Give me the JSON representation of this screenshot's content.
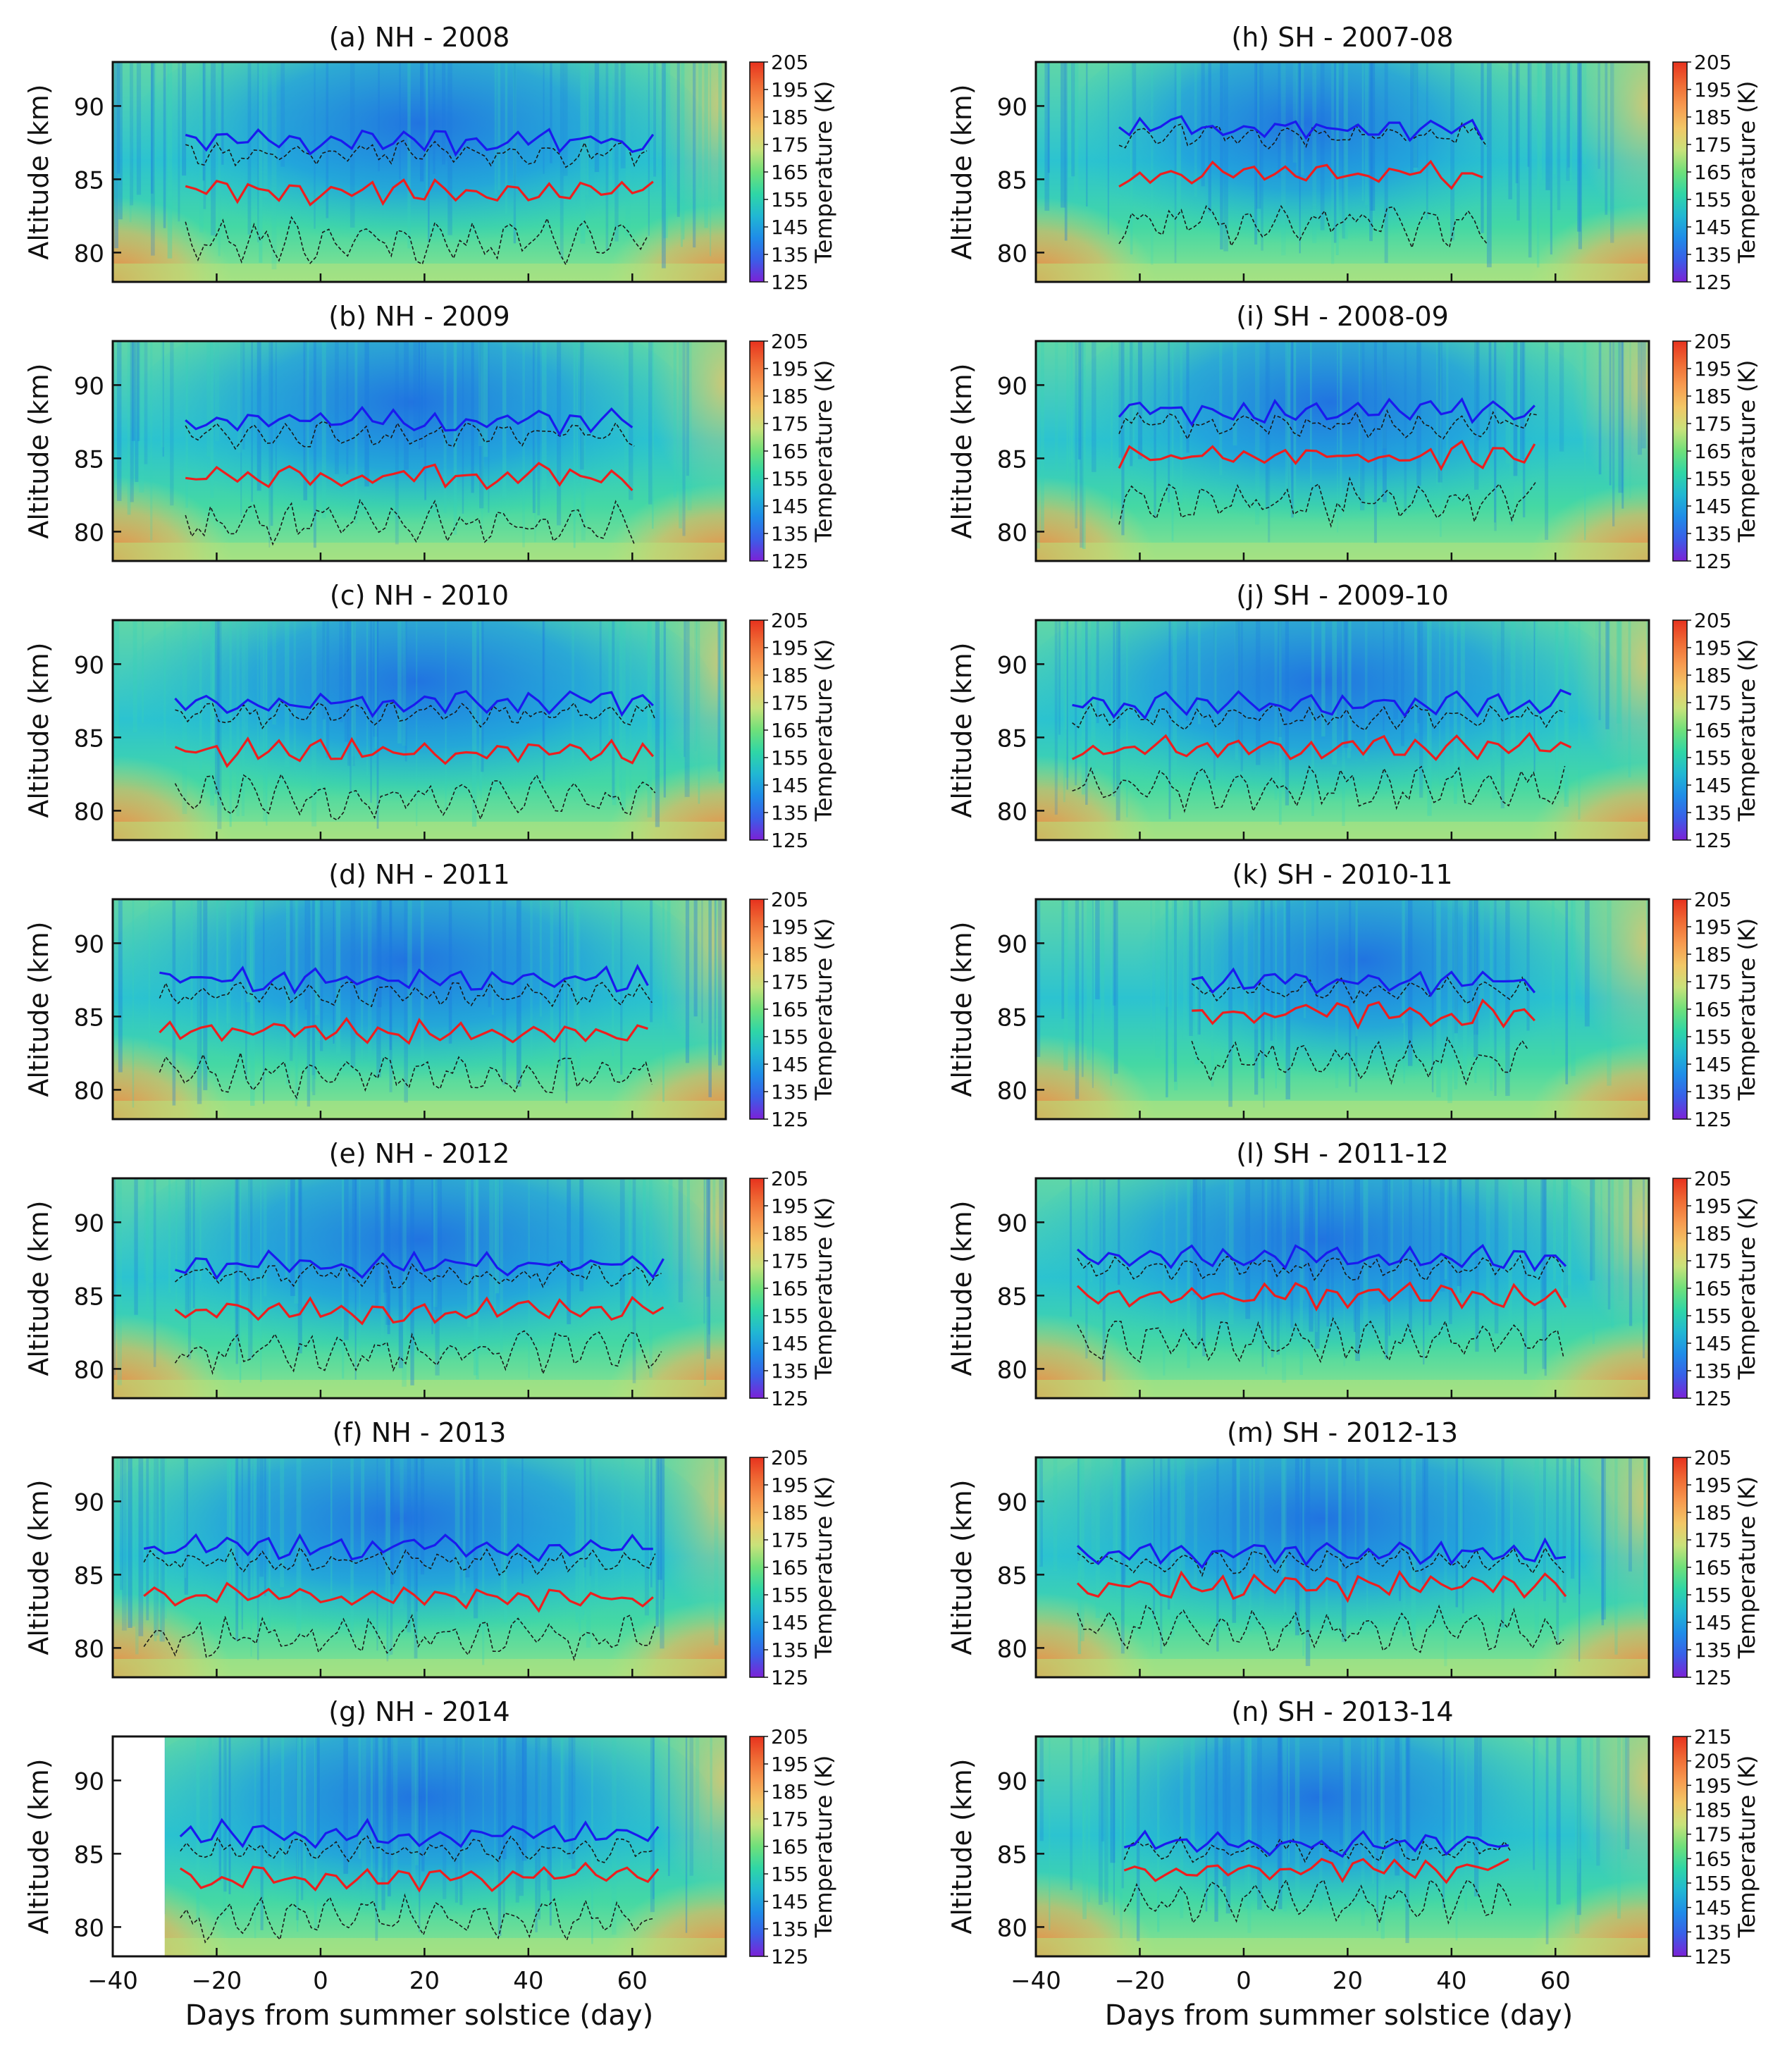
{
  "figure": {
    "shared_xlabel": "Days from summer solstice (day)",
    "shared_ylabel": "Altitude (km)",
    "colorbar_label": "Temperature (K)",
    "x_ticks": [
      -40,
      -20,
      0,
      20,
      40,
      60
    ],
    "x_tick_labels": [
      "−40",
      "−20",
      "0",
      "20",
      "40",
      "60"
    ],
    "y_ticks": [
      80,
      85,
      90
    ],
    "colormap": [
      "#7c21d6",
      "#3a5ee8",
      "#1f8ce8",
      "#21b7d3",
      "#2fd6a6",
      "#6fe07a",
      "#c9e27a",
      "#f2c766",
      "#f79a4f",
      "#ef6a34",
      "#e7321e"
    ]
  },
  "chart_data": [
    {
      "id": "a",
      "title": "(a) NH - 2008",
      "type": "heatmap",
      "xlim": [
        -40,
        78
      ],
      "ylim": [
        78,
        93
      ],
      "colorbar_ticks": [
        125,
        135,
        145,
        155,
        165,
        175,
        185,
        195,
        205
      ],
      "mean_red": 84.2,
      "mean_blue": 87.6,
      "x_start": -26,
      "x_end": 64,
      "lower_dashed": 80.8,
      "upper_dashed": 86.7
    },
    {
      "id": "b",
      "title": "(b) NH - 2009",
      "type": "heatmap",
      "xlim": [
        -40,
        78
      ],
      "ylim": [
        78,
        93
      ],
      "colorbar_ticks": [
        125,
        135,
        145,
        155,
        165,
        175,
        185,
        195,
        205
      ],
      "mean_red": 83.8,
      "mean_blue": 87.6,
      "x_start": -26,
      "x_end": 61,
      "lower_dashed": 80.5,
      "upper_dashed": 86.6
    },
    {
      "id": "c",
      "title": "(c) NH - 2010",
      "type": "heatmap",
      "xlim": [
        -40,
        78
      ],
      "ylim": [
        78,
        93
      ],
      "colorbar_ticks": [
        125,
        135,
        145,
        155,
        165,
        175,
        185,
        195,
        205
      ],
      "mean_red": 84.0,
      "mean_blue": 87.4,
      "x_start": -28,
      "x_end": 65,
      "lower_dashed": 80.9,
      "upper_dashed": 86.6
    },
    {
      "id": "d",
      "title": "(d) NH - 2011",
      "type": "heatmap",
      "xlim": [
        -40,
        78
      ],
      "ylim": [
        78,
        93
      ],
      "colorbar_ticks": [
        125,
        135,
        145,
        155,
        165,
        175,
        185,
        195,
        205
      ],
      "mean_red": 83.9,
      "mean_blue": 87.5,
      "x_start": -31,
      "x_end": 64,
      "lower_dashed": 81.0,
      "upper_dashed": 86.5
    },
    {
      "id": "e",
      "title": "(e) NH - 2012",
      "type": "heatmap",
      "xlim": [
        -40,
        78
      ],
      "ylim": [
        78,
        93
      ],
      "colorbar_ticks": [
        125,
        135,
        145,
        155,
        165,
        175,
        185,
        195,
        205
      ],
      "mean_red": 84.0,
      "mean_blue": 87.1,
      "x_start": -28,
      "x_end": 66,
      "lower_dashed": 81.2,
      "upper_dashed": 86.4
    },
    {
      "id": "f",
      "title": "(f) NH - 2013",
      "type": "heatmap",
      "xlim": [
        -40,
        78
      ],
      "ylim": [
        78,
        93
      ],
      "colorbar_ticks": [
        125,
        135,
        145,
        155,
        165,
        175,
        185,
        195,
        205
      ],
      "mean_red": 83.5,
      "mean_blue": 86.9,
      "x_start": -34,
      "x_end": 65,
      "lower_dashed": 80.8,
      "upper_dashed": 85.9
    },
    {
      "id": "g",
      "title": "(g) NH - 2014",
      "type": "heatmap",
      "xlim": [
        -40,
        78
      ],
      "ylim": [
        78,
        93
      ],
      "colorbar_ticks": [
        125,
        135,
        145,
        155,
        165,
        175,
        185,
        195,
        205
      ],
      "mean_red": 83.4,
      "mean_blue": 86.4,
      "x_start": -27,
      "x_end": 65,
      "lower_dashed": 80.6,
      "upper_dashed": 85.3,
      "blank_until": -30
    },
    {
      "id": "h",
      "title": "(h) SH - 2007-08",
      "type": "heatmap",
      "xlim": [
        -40,
        78
      ],
      "ylim": [
        78,
        93
      ],
      "colorbar_ticks": [
        125,
        135,
        145,
        155,
        165,
        175,
        185,
        195,
        205
      ],
      "mean_red": 85.3,
      "mean_blue": 88.6,
      "x_start": -24,
      "x_end": 47,
      "lower_dashed": 82.0,
      "upper_dashed": 88.0
    },
    {
      "id": "i",
      "title": "(i) SH - 2008-09",
      "type": "heatmap",
      "xlim": [
        -40,
        78
      ],
      "ylim": [
        78,
        93
      ],
      "colorbar_ticks": [
        125,
        135,
        145,
        155,
        165,
        175,
        185,
        195,
        205
      ],
      "mean_red": 85.2,
      "mean_blue": 88.2,
      "x_start": -24,
      "x_end": 57,
      "lower_dashed": 82.0,
      "upper_dashed": 87.3
    },
    {
      "id": "j",
      "title": "(j) SH - 2009-10",
      "type": "heatmap",
      "xlim": [
        -40,
        78
      ],
      "ylim": [
        78,
        93
      ],
      "colorbar_ticks": [
        125,
        135,
        145,
        155,
        165,
        175,
        185,
        195,
        205
      ],
      "mean_red": 84.3,
      "mean_blue": 87.3,
      "x_start": -33,
      "x_end": 63,
      "lower_dashed": 81.5,
      "upper_dashed": 86.4
    },
    {
      "id": "k",
      "title": "(k) SH - 2010-11",
      "type": "heatmap",
      "xlim": [
        -40,
        78
      ],
      "ylim": [
        78,
        93
      ],
      "colorbar_ticks": [
        125,
        135,
        145,
        155,
        165,
        175,
        185,
        195,
        205
      ],
      "mean_red": 85.2,
      "mean_blue": 87.4,
      "x_start": -10,
      "x_end": 56,
      "lower_dashed": 82.0,
      "upper_dashed": 86.8
    },
    {
      "id": "l",
      "title": "(l) SH - 2011-12",
      "type": "heatmap",
      "xlim": [
        -40,
        78
      ],
      "ylim": [
        78,
        93
      ],
      "colorbar_ticks": [
        125,
        135,
        145,
        155,
        165,
        175,
        185,
        195,
        205
      ],
      "mean_red": 85.0,
      "mean_blue": 87.6,
      "x_start": -32,
      "x_end": 62,
      "lower_dashed": 81.8,
      "upper_dashed": 86.9
    },
    {
      "id": "m",
      "title": "(m) SH - 2012-13",
      "type": "heatmap",
      "xlim": [
        -40,
        78
      ],
      "ylim": [
        78,
        93
      ],
      "colorbar_ticks": [
        125,
        135,
        145,
        155,
        165,
        175,
        185,
        195,
        205
      ],
      "mean_red": 84.2,
      "mean_blue": 86.4,
      "x_start": -32,
      "x_end": 62,
      "lower_dashed": 81.3,
      "upper_dashed": 85.9
    },
    {
      "id": "n",
      "title": "(n) SH - 2013-14",
      "type": "heatmap",
      "xlim": [
        -40,
        78
      ],
      "ylim": [
        78,
        93
      ],
      "colorbar_ticks": [
        125,
        135,
        145,
        155,
        165,
        175,
        185,
        195,
        205,
        215
      ],
      "mean_red": 83.9,
      "mean_blue": 85.7,
      "x_start": -23,
      "x_end": 52,
      "lower_dashed": 81.8,
      "upper_dashed": 85.3
    }
  ]
}
